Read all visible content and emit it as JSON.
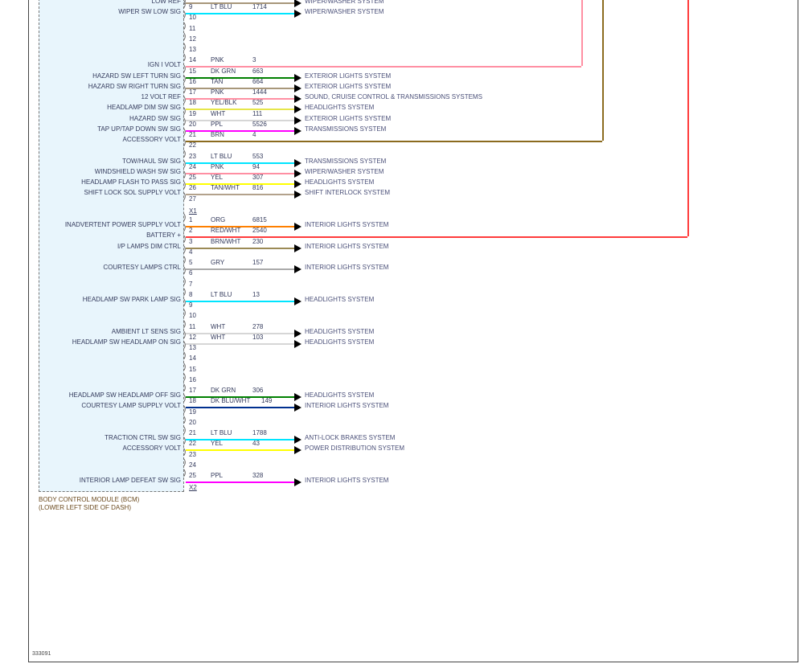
{
  "top_partial": {
    "label": "LOW REF",
    "wire_hex": "#a8977a",
    "system": "WIPER/WASHER SYSTEM"
  },
  "connectors": [
    {
      "name": "X1",
      "pins": [
        {
          "pin": "9",
          "label": "WIPER SW LOW SIG",
          "color": "LT BLU",
          "circuit": "1714",
          "system": "WIPER/WASHER SYSTEM",
          "hex": "#00e5ff"
        },
        {
          "pin": "10"
        },
        {
          "pin": "11"
        },
        {
          "pin": "12"
        },
        {
          "pin": "13"
        },
        {
          "pin": "14",
          "label": "IGN I VOLT",
          "color": "PNK",
          "circuit": "3",
          "hex": "#ff8fa3"
        },
        {
          "pin": "15",
          "label": "HAZARD SW LEFT TURN SIG",
          "color": "DK GRN",
          "circuit": "663",
          "system": "EXTERIOR LIGHTS SYSTEM",
          "hex": "#008000"
        },
        {
          "pin": "16",
          "label": "HAZARD SW RIGHT TURN SIG",
          "color": "TAN",
          "circuit": "664",
          "system": "EXTERIOR LIGHTS SYSTEM",
          "hex": "#a8977a"
        },
        {
          "pin": "17",
          "label": "12 VOLT REF",
          "color": "PNK",
          "circuit": "1444",
          "system": "SOUND, CRUISE CONTROL & TRANSMISSIONS SYSTEMS",
          "hex": "#ff8fa3"
        },
        {
          "pin": "18",
          "label": "HEADLAMP DIM SW SIG",
          "color": "YEL/BLK",
          "circuit": "525",
          "system": "HEADLIGHTS SYSTEM",
          "hex": "#e6e64a"
        },
        {
          "pin": "19",
          "label": "HAZARD SW SIG",
          "color": "WHT",
          "circuit": "111",
          "system": "EXTERIOR LIGHTS SYSTEM",
          "hex": "#d6d6d6"
        },
        {
          "pin": "20",
          "label": "TAP UP/TAP DOWN SW SIG",
          "color": "PPL",
          "circuit": "5526",
          "system": "TRANSMISSIONS SYSTEM",
          "hex": "#ff00ff"
        },
        {
          "pin": "21",
          "label": "ACCESSORY VOLT",
          "color": "BRN",
          "circuit": "4",
          "hex": "#8b6b1f"
        },
        {
          "pin": "22"
        },
        {
          "pin": "23",
          "label": "TOW/HAUL SW SIG",
          "color": "LT BLU",
          "circuit": "553",
          "system": "TRANSMISSIONS SYSTEM",
          "hex": "#00e5ff"
        },
        {
          "pin": "24",
          "label": "WINDSHIELD WASH SW SIG",
          "color": "PNK",
          "circuit": "94",
          "system": "WIPER/WASHER SYSTEM",
          "hex": "#ff8fa3"
        },
        {
          "pin": "25",
          "label": "HEADLAMP FLASH TO PASS SIG",
          "color": "YEL",
          "circuit": "307",
          "system": "HEADLIGHTS SYSTEM",
          "hex": "#ffff00"
        },
        {
          "pin": "26",
          "label": "SHIFT LOCK SOL SUPPLY VOLT",
          "color": "TAN/WHT",
          "circuit": "816",
          "system": "SHIFT INTERLOCK SYSTEM",
          "hex": "#b3a28c"
        },
        {
          "pin": "27"
        }
      ]
    },
    {
      "name": "X2",
      "pins": [
        {
          "pin": "1",
          "label": "INADVERTENT POWER SUPPLY VOLT",
          "color": "ORG",
          "circuit": "6815",
          "system": "INTERIOR LIGHTS SYSTEM",
          "hex": "#ff8000"
        },
        {
          "pin": "2",
          "label": "BATTERY +",
          "color": "RED/WHT",
          "circuit": "2540",
          "hex": "#ff3b3b"
        },
        {
          "pin": "3",
          "label": "I/P LAMPS DIM CTRL",
          "color": "BRN/WHT",
          "circuit": "230",
          "system": "INTERIOR LIGHTS SYSTEM",
          "hex": "#9b8a55"
        },
        {
          "pin": "4"
        },
        {
          "pin": "5",
          "label": "COURTESY LAMPS CTRL",
          "color": "GRY",
          "circuit": "157",
          "system": "INTERIOR LIGHTS SYSTEM",
          "hex": "#aaaaaa"
        },
        {
          "pin": "6"
        },
        {
          "pin": "7"
        },
        {
          "pin": "8",
          "label": "HEADLAMP SW PARK LAMP SIG",
          "color": "LT BLU",
          "circuit": "13",
          "system": "HEADLIGHTS SYSTEM",
          "hex": "#00e5ff"
        },
        {
          "pin": "9"
        },
        {
          "pin": "10"
        },
        {
          "pin": "11",
          "label": "AMBIENT LT SENS SIG",
          "color": "WHT",
          "circuit": "278",
          "system": "HEADLIGHTS SYSTEM",
          "hex": "#d6d6d6"
        },
        {
          "pin": "12",
          "label": "HEADLAMP SW HEADLAMP ON SIG",
          "color": "WHT",
          "circuit": "103",
          "system": "HEADLIGHTS SYSTEM",
          "hex": "#d6d6d6"
        },
        {
          "pin": "13"
        },
        {
          "pin": "14"
        },
        {
          "pin": "15"
        },
        {
          "pin": "16"
        },
        {
          "pin": "17",
          "label": "HEADLAMP SW HEADLAMP OFF SIG",
          "color": "DK GRN",
          "circuit": "306",
          "system": "HEADLIGHTS SYSTEM",
          "hex": "#008000"
        },
        {
          "pin": "18",
          "label": "COURTESY LAMP SUPPLY VOLT",
          "color": "DK BLU/WHT",
          "circuit": "149",
          "system": "INTERIOR LIGHTS SYSTEM",
          "hex": "#00308f"
        },
        {
          "pin": "19"
        },
        {
          "pin": "20"
        },
        {
          "pin": "21",
          "label": "TRACTION CTRL SW SIG",
          "color": "LT BLU",
          "circuit": "1788",
          "system": "ANTI-LOCK BRAKES SYSTEM",
          "hex": "#00e5ff"
        },
        {
          "pin": "22",
          "label": "ACCESSORY VOLT",
          "color": "YEL",
          "circuit": "43",
          "system": "POWER DISTRIBUTION SYSTEM",
          "hex": "#ffff00"
        },
        {
          "pin": "23"
        },
        {
          "pin": "24"
        },
        {
          "pin": "25",
          "label": "INTERIOR LAMP DEFEAT SW SIG",
          "color": "PPL",
          "circuit": "328",
          "system": "INTERIOR LIGHTS SYSTEM",
          "hex": "#ff00ff"
        }
      ]
    }
  ],
  "module": {
    "name": "BODY CONTROL MODULE (BCM)",
    "location": "(LOWER LEFT SIDE OF DASH)"
  },
  "diagram_id": "333091"
}
